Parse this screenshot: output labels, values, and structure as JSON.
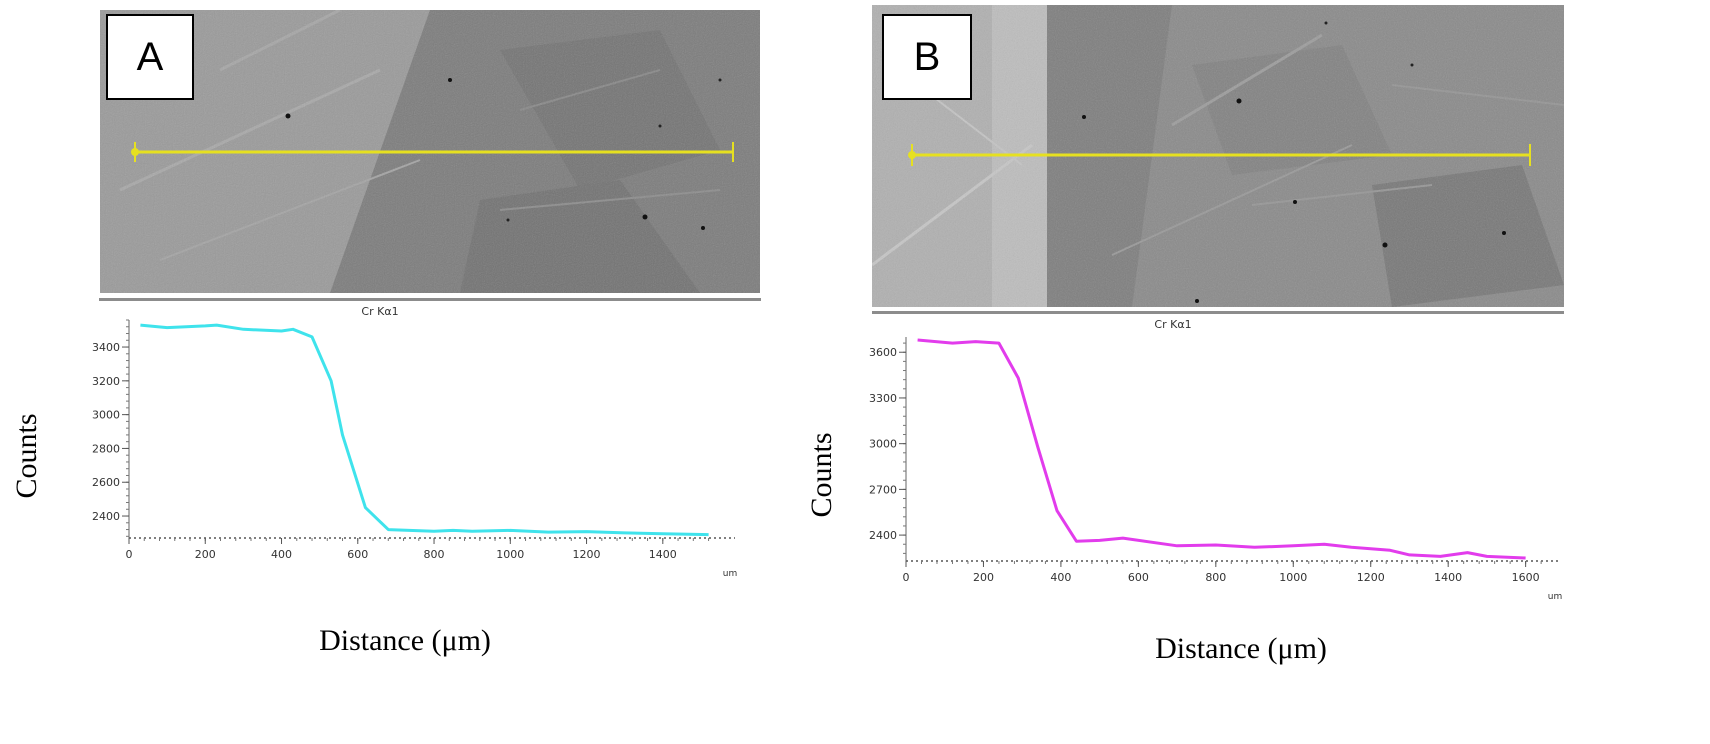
{
  "panels": [
    {
      "label": "A",
      "map_caption": "Cr Kα1",
      "y_title": "Counts",
      "x_title": "Distance (μm)"
    },
    {
      "label": "B",
      "map_caption": "Cr Kα1",
      "y_title": "Counts",
      "x_title": "Distance (μm)"
    }
  ],
  "colors": {
    "scan_line": "#e6e020",
    "series_A": "#3fe3ec",
    "series_B": "#e23cec"
  },
  "chart_data": [
    {
      "type": "line",
      "title": "",
      "xlabel": "Distance (μm)",
      "ylabel": "Counts",
      "x_unit": "um",
      "xlim": [
        0,
        1550
      ],
      "ylim": [
        2270,
        3560
      ],
      "x_ticks": [
        0,
        200,
        400,
        600,
        800,
        1000,
        1200,
        1400
      ],
      "y_ticks": [
        2400,
        2600,
        2800,
        3000,
        3200,
        3400
      ],
      "series": [
        {
          "color": "#3fe3ec",
          "x": [
            30,
            100,
            200,
            230,
            300,
            400,
            430,
            480,
            530,
            560,
            620,
            680,
            800,
            850,
            900,
            1000,
            1100,
            1200,
            1300,
            1400,
            1520
          ],
          "y": [
            3530,
            3515,
            3525,
            3530,
            3505,
            3495,
            3505,
            3460,
            3200,
            2880,
            2450,
            2320,
            2310,
            2315,
            2310,
            2315,
            2305,
            2308,
            2300,
            2295,
            2290
          ]
        }
      ]
    },
    {
      "type": "line",
      "title": "",
      "xlabel": "Distance (μm)",
      "ylabel": "Counts",
      "x_unit": "um",
      "xlim": [
        0,
        1650
      ],
      "ylim": [
        2230,
        3700
      ],
      "x_ticks": [
        0,
        200,
        400,
        600,
        800,
        1000,
        1200,
        1400,
        1600
      ],
      "y_ticks": [
        2400,
        2700,
        3000,
        3300,
        3600
      ],
      "series": [
        {
          "color": "#e23cec",
          "x": [
            30,
            120,
            180,
            240,
            290,
            340,
            390,
            440,
            500,
            560,
            700,
            800,
            900,
            1000,
            1080,
            1150,
            1250,
            1300,
            1380,
            1450,
            1500,
            1600
          ],
          "y": [
            3680,
            3660,
            3670,
            3660,
            3430,
            2980,
            2560,
            2360,
            2365,
            2380,
            2330,
            2335,
            2320,
            2330,
            2340,
            2320,
            2300,
            2270,
            2260,
            2285,
            2260,
            2250
          ]
        }
      ]
    }
  ]
}
